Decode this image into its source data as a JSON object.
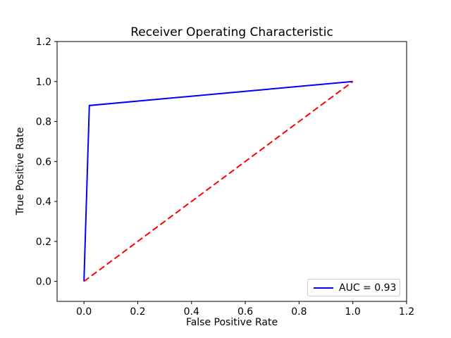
{
  "figure": {
    "background": "#ffffff"
  },
  "chart_data": {
    "type": "line",
    "title": "Receiver Operating Characteristic",
    "xlabel": "False Positive Rate",
    "ylabel": "True Positive Rate",
    "xlim": [
      -0.1,
      1.2
    ],
    "ylim": [
      -0.1,
      1.2
    ],
    "xticks": [
      0.0,
      0.2,
      0.4,
      0.6,
      0.8,
      1.0,
      1.2
    ],
    "yticks": [
      0.0,
      0.2,
      0.4,
      0.6,
      0.8,
      1.0,
      1.2
    ],
    "grid": false,
    "frame_color": "#000000",
    "series": [
      {
        "name": "roc-curve",
        "color": "#0000ff",
        "style": "solid",
        "x": [
          0.0,
          0.02,
          1.0
        ],
        "y": [
          0.0,
          0.88,
          1.0
        ]
      },
      {
        "name": "chance-diagonal",
        "color": "#ff0000",
        "style": "dashed",
        "x": [
          0.0,
          1.0
        ],
        "y": [
          0.0,
          1.0
        ]
      }
    ],
    "auc": 0.93,
    "legend": {
      "position": "lower right",
      "entries": [
        {
          "label": "AUC = 0.93",
          "color": "#0000ff",
          "style": "solid"
        }
      ]
    }
  }
}
